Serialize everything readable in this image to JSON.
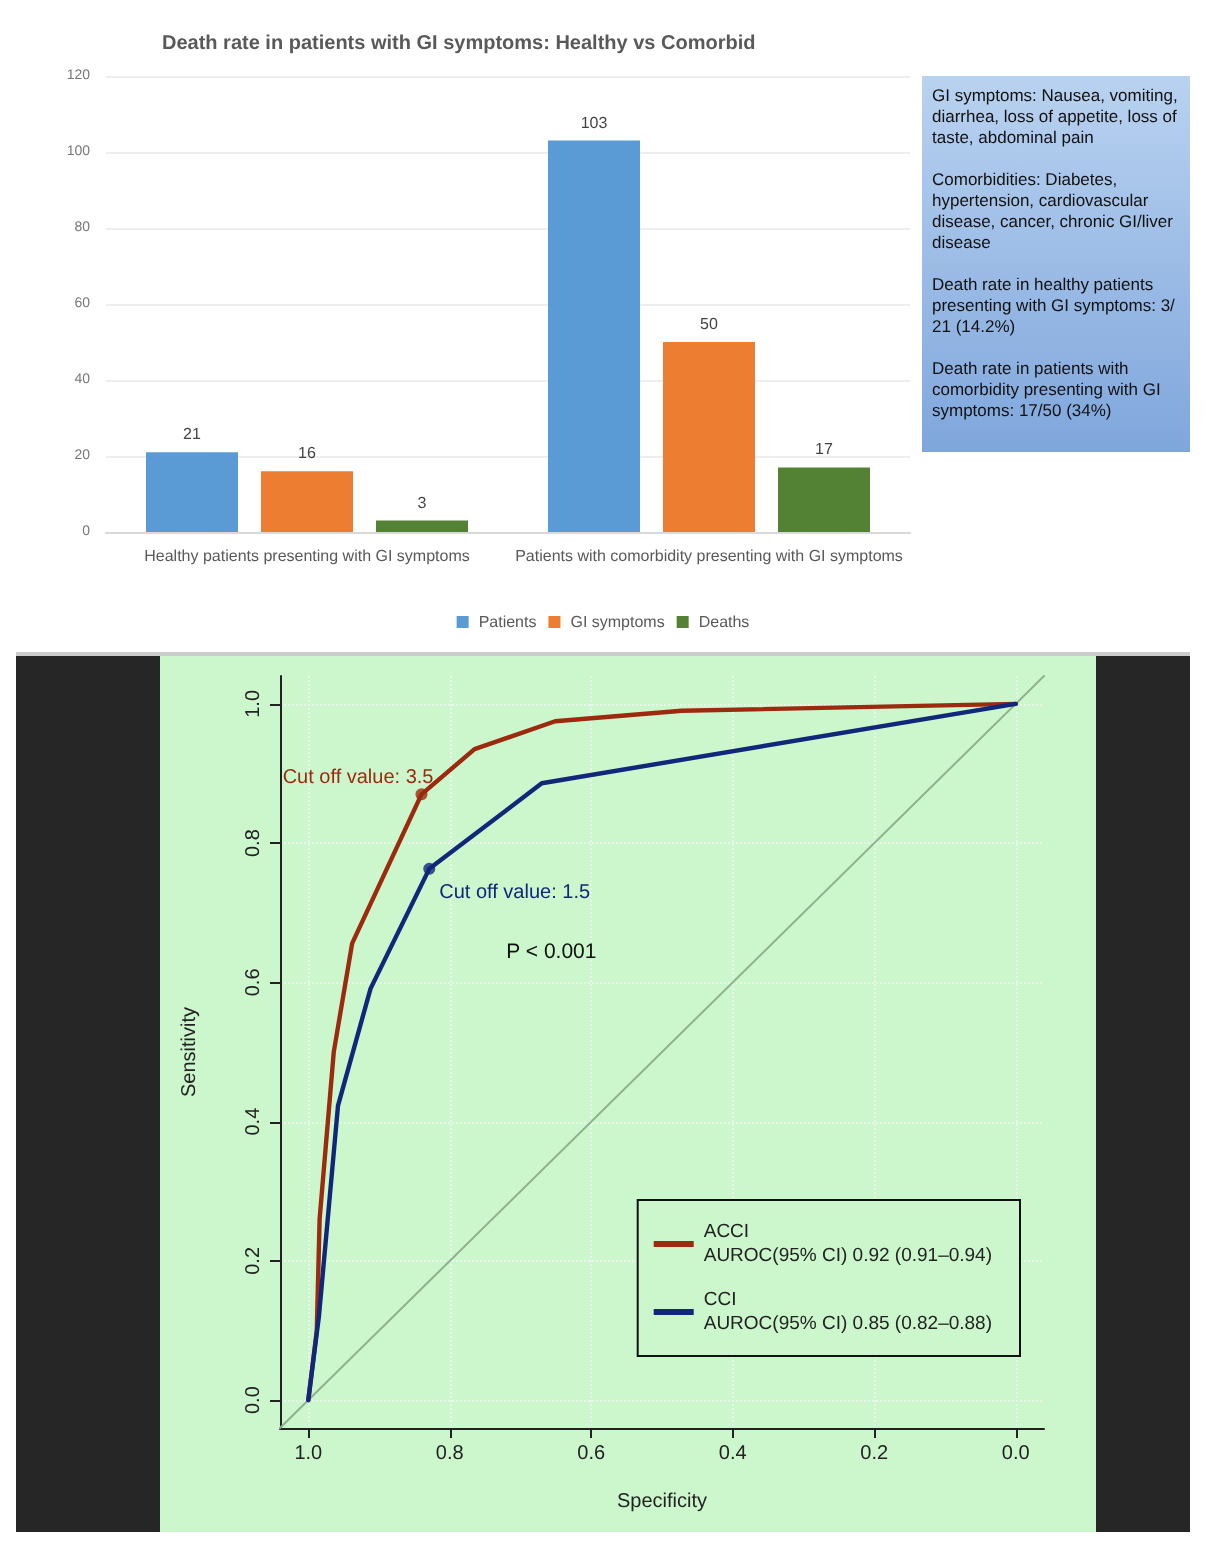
{
  "chart_data": [
    {
      "type": "bar",
      "title": "Death rate in patients with GI symptoms: Healthy vs Comorbid",
      "categories": [
        "Healthy patients presenting with GI symptoms",
        "Patients with comorbidity presenting with GI symptoms"
      ],
      "series": [
        {
          "name": "Patients",
          "color": "#5b9bd5",
          "values": [
            21,
            103
          ]
        },
        {
          "name": "GI symptoms",
          "color": "#ed7d31",
          "values": [
            16,
            50
          ]
        },
        {
          "name": "Deaths",
          "color": "#548235",
          "values": [
            3,
            17
          ]
        }
      ],
      "ylim": [
        0,
        120
      ],
      "yticks": [
        0,
        20,
        40,
        60,
        80,
        100,
        120
      ],
      "grid": "y",
      "data_labels": true,
      "legend": "bottom",
      "annotations": [
        "GI symptoms: Nausea, vomiting, diarrhea, loss of appetite, loss of taste, abdominal pain",
        "Comorbidities: Diabetes, hypertension, cardiovascular disease, cancer, chronic GI/liver disease",
        "Death rate in healthy patients presenting with GI symptoms: 3/21 (14.2%)",
        "Death rate in patients with comorbidity presenting with GI symptoms: 17/50 (34%)"
      ]
    },
    {
      "type": "line",
      "xlabel": "Specificity",
      "ylabel": "Sensitivity",
      "series": [
        {
          "name": "ACCI\nAUROC(95% CI) 0.92 (0.91–0.94)",
          "color": "#9b2a0e",
          "x": [
            1.0,
            0.988,
            0.984,
            0.964,
            0.938,
            0.84,
            0.765,
            0.651,
            0.472,
            0.0
          ],
          "values": [
            0.0,
            0.1,
            0.26,
            0.5,
            0.656,
            0.87,
            0.935,
            0.975,
            0.99,
            1.0
          ]
        },
        {
          "name": "CCI\nAUROC(95% CI) 0.85 (0.82–0.88)",
          "color": "#10277a",
          "x": [
            1.0,
            0.985,
            0.958,
            0.912,
            0.829,
            0.67,
            0.0
          ],
          "values": [
            0.0,
            0.12,
            0.423,
            0.591,
            0.763,
            0.886,
            1.0
          ]
        },
        {
          "type": "scatter",
          "marker": "circle",
          "x": [
            0.84,
            0.829
          ],
          "values": [
            0.87,
            0.763
          ],
          "colors": [
            "#9b2a0e",
            "#10277a"
          ]
        },
        {
          "color": "#8fb08f",
          "x": [
            1.04,
            -0.04
          ],
          "values": [
            -0.04,
            1.04
          ]
        }
      ],
      "xlim": [
        1.04,
        -0.04
      ],
      "ylim": [
        -0.04,
        1.04
      ],
      "xticks": [
        {
          "value": 1,
          "label": "1.0"
        },
        0.8,
        0.6,
        0.4,
        0.2,
        {
          "value": 0,
          "label": "0.0"
        }
      ],
      "yticks": [
        {
          "value": 0,
          "label": "0.0"
        },
        0.2,
        0.4,
        0.6,
        0.8,
        {
          "value": 1,
          "label": "1.0"
        }
      ],
      "grid": true,
      "legend": "bottom right",
      "marker": "none",
      "line_style": "solid",
      "annotations": [
        {
          "text": "Cut off value: 3.5",
          "x": 0.84,
          "y": 0.87
        },
        {
          "text": "Cut off value: 1.5",
          "x": 0.829,
          "y": 0.763
        },
        "P < 0.001"
      ]
    }
  ]
}
